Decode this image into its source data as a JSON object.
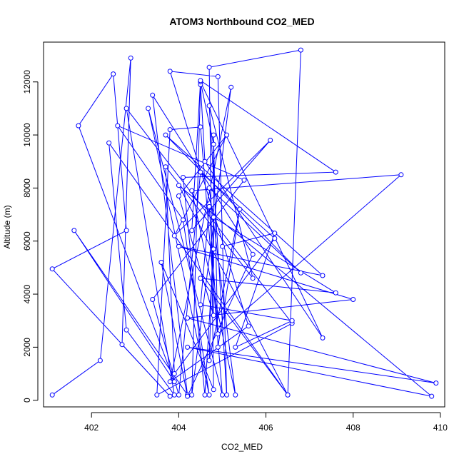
{
  "chart_data": {
    "type": "line",
    "title": "ATOM3 Northbound CO2_MED",
    "xlabel": "CO2_MED",
    "ylabel": "Altitude (m)",
    "xlim": [
      400.9,
      410.1
    ],
    "ylim": [
      -250,
      13500
    ],
    "xticks": [
      402,
      404,
      406,
      408,
      410
    ],
    "yticks": [
      0,
      2000,
      4000,
      6000,
      8000,
      10000,
      12000
    ],
    "grid": false,
    "legend": "none",
    "series": [
      {
        "color": "#0000ff",
        "marker": "open-circle",
        "points": [
          [
            401.1,
            200
          ],
          [
            402.2,
            1500
          ],
          [
            402.9,
            12900
          ],
          [
            402.7,
            2100
          ],
          [
            403.8,
            150
          ],
          [
            401.1,
            4950
          ],
          [
            402.8,
            6400
          ],
          [
            402.5,
            12300
          ],
          [
            401.7,
            10350
          ],
          [
            403.9,
            700
          ],
          [
            401.6,
            6400
          ],
          [
            404.2,
            200
          ],
          [
            403.4,
            11500
          ],
          [
            405.7,
            5500
          ],
          [
            404.2,
            150
          ],
          [
            403.6,
            5200
          ],
          [
            404.8,
            400
          ],
          [
            404.7,
            12550
          ],
          [
            406.8,
            13200
          ],
          [
            406.5,
            200
          ],
          [
            402.4,
            9700
          ],
          [
            402.8,
            2650
          ],
          [
            403.9,
            200
          ],
          [
            402.8,
            11000
          ],
          [
            406.6,
            2900
          ],
          [
            403.5,
            200
          ],
          [
            403.8,
            10200
          ],
          [
            404.5,
            10300
          ],
          [
            405.0,
            200
          ],
          [
            403.3,
            11000
          ],
          [
            404.7,
            200
          ],
          [
            404.1,
            6800
          ],
          [
            402.6,
            10350
          ],
          [
            405.5,
            8300
          ],
          [
            403.4,
            3800
          ],
          [
            404.0,
            200
          ],
          [
            404.5,
            8600
          ],
          [
            406.2,
            6100
          ],
          [
            403.9,
            1000
          ],
          [
            403.7,
            8800
          ],
          [
            405.7,
            4600
          ],
          [
            404.7,
            11100
          ],
          [
            405.1,
            200
          ],
          [
            404.9,
            12200
          ],
          [
            403.8,
            12400
          ],
          [
            405.6,
            2800
          ],
          [
            403.8,
            700
          ],
          [
            405.2,
            11800
          ],
          [
            404.3,
            200
          ],
          [
            404.5,
            11900
          ],
          [
            404.6,
            9000
          ],
          [
            407.3,
            2350
          ],
          [
            404.5,
            12000
          ],
          [
            404.8,
            9650
          ],
          [
            404.8,
            5700
          ],
          [
            404.6,
            200
          ],
          [
            404.1,
            8400
          ],
          [
            407.6,
            8600
          ],
          [
            404.5,
            12050
          ],
          [
            404.3,
            6400
          ],
          [
            406.1,
            9800
          ],
          [
            403.9,
            6200
          ],
          [
            405.1,
            10000
          ],
          [
            404.0,
            7700
          ],
          [
            404.8,
            3200
          ],
          [
            404.8,
            10000
          ],
          [
            404.9,
            2000
          ],
          [
            405.4,
            7200
          ],
          [
            404.7,
            1500
          ],
          [
            404.8,
            6900
          ],
          [
            407.6,
            4050
          ],
          [
            404.5,
            4600
          ],
          [
            406.5,
            200
          ],
          [
            404.0,
            8100
          ],
          [
            409.8,
            150
          ],
          [
            404.2,
            2000
          ],
          [
            409.9,
            650
          ],
          [
            404.2,
            3100
          ],
          [
            408.0,
            3800
          ],
          [
            404.0,
            5800
          ],
          [
            407.3,
            4700
          ],
          [
            403.7,
            10000
          ],
          [
            406.8,
            4800
          ],
          [
            404.7,
            8000
          ],
          [
            405.3,
            200
          ],
          [
            404.3,
            7900
          ],
          [
            409.1,
            8500
          ],
          [
            404.9,
            2500
          ],
          [
            404.7,
            7300
          ],
          [
            404.5,
            3600
          ],
          [
            406.6,
            3000
          ],
          [
            405.3,
            2000
          ],
          [
            406.2,
            6300
          ],
          [
            405.0,
            5800
          ]
        ]
      }
    ]
  }
}
